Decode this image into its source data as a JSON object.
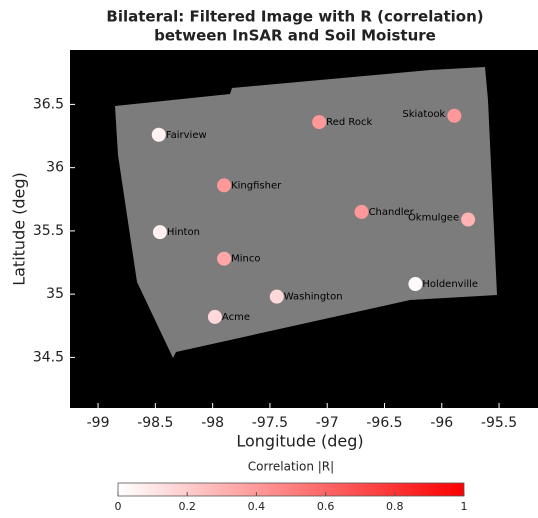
{
  "chart_data": {
    "type": "scatter",
    "title": [
      "Bilateral: Filtered Image with R (correlation)",
      "between InSAR and Soil Moisture"
    ],
    "x_label": "Longitude (deg)",
    "y_label": "Latitude (deg)",
    "xlim": [
      -99.245,
      -95.16
    ],
    "ylim": [
      34.1,
      36.93
    ],
    "xticks": [
      -99,
      -98.5,
      -98,
      -97.5,
      -97,
      -96.5,
      -96,
      -95.5
    ],
    "yticks": [
      34.5,
      35,
      35.5,
      36,
      36.5
    ],
    "series": [
      {
        "labels": [
          "Fairview",
          "Red Rock",
          "Skiatook",
          "Kingfisher",
          "Chandler",
          "Okmulgee",
          "Hinton",
          "Minco",
          "Holdenville",
          "Washington",
          "Acme"
        ],
        "x": [
          -98.47,
          -97.07,
          -95.89,
          -97.9,
          -96.7,
          -95.77,
          -98.46,
          -97.9,
          -96.23,
          -97.44,
          -97.98
        ],
        "y": [
          36.26,
          36.36,
          36.41,
          35.86,
          35.65,
          35.59,
          35.49,
          35.28,
          35.08,
          34.98,
          34.82
        ],
        "r": [
          0.05,
          0.4,
          0.4,
          0.4,
          0.4,
          0.3,
          0.05,
          0.35,
          0.02,
          0.15,
          0.15
        ]
      }
    ],
    "colorbar": {
      "label": "Correlation |R|",
      "clim": [
        0,
        1
      ],
      "cticks": [
        0,
        0.2,
        0.4,
        0.6,
        0.8,
        1
      ],
      "colors": [
        "#ffffff",
        "#ff0000"
      ]
    }
  }
}
